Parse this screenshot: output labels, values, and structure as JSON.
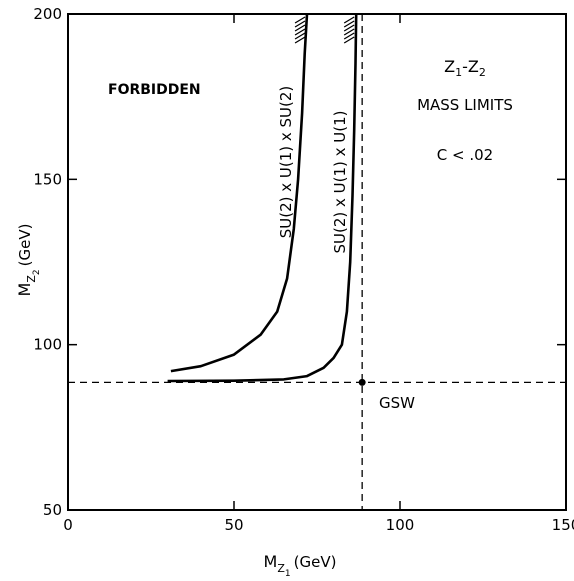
{
  "chart_data": {
    "type": "line",
    "title": "",
    "xlabel": {
      "main": "M",
      "sub": "Z",
      "subsub": "1",
      "unit": "(GeV)"
    },
    "ylabel": {
      "main": "M",
      "sub": "Z",
      "subsub": "2",
      "unit": "(GeV)"
    },
    "xlim": [
      0,
      150
    ],
    "ylim": [
      50,
      200
    ],
    "x_ticks": [
      0,
      50,
      100,
      150
    ],
    "y_ticks": [
      50,
      100,
      150,
      200
    ],
    "x_tick_labels": [
      "0",
      "50",
      "100",
      "150"
    ],
    "y_tick_labels": [
      "50",
      "100",
      "150",
      "200"
    ],
    "grid": false,
    "legend": "none",
    "series": [
      {
        "name": "SU(2) x U(1) x SU(2)",
        "x": [
          31,
          40,
          50,
          58,
          63,
          66,
          68,
          69.3,
          70.5,
          71.3,
          72
        ],
        "y": [
          92,
          93.5,
          97,
          103,
          110,
          120,
          135,
          150,
          170,
          188,
          200
        ]
      },
      {
        "name": "SU(2) x U(1) x U(1)",
        "x": [
          30,
          50,
          65,
          72,
          77,
          80,
          82.5,
          84,
          85,
          85.7,
          86.2,
          86.6,
          86.8
        ],
        "y": [
          89,
          89.1,
          89.5,
          90.5,
          93,
          96,
          100,
          110,
          125,
          145,
          165,
          185,
          200
        ]
      }
    ],
    "reference_lines": {
      "gsw_x": 88.6,
      "gsw_y": 88.6
    },
    "point": {
      "label": "GSW",
      "x": 88.6,
      "y": 88.6
    },
    "annotations": {
      "forbidden": "FORBIDDEN",
      "z_title_a": "Z",
      "z_title_a_sub": "1",
      "z_title_dash": "-",
      "z_title_b": "Z",
      "z_title_b_sub": "2",
      "mass_limits": "MASS LIMITS",
      "c_limit": "C < .02"
    }
  }
}
